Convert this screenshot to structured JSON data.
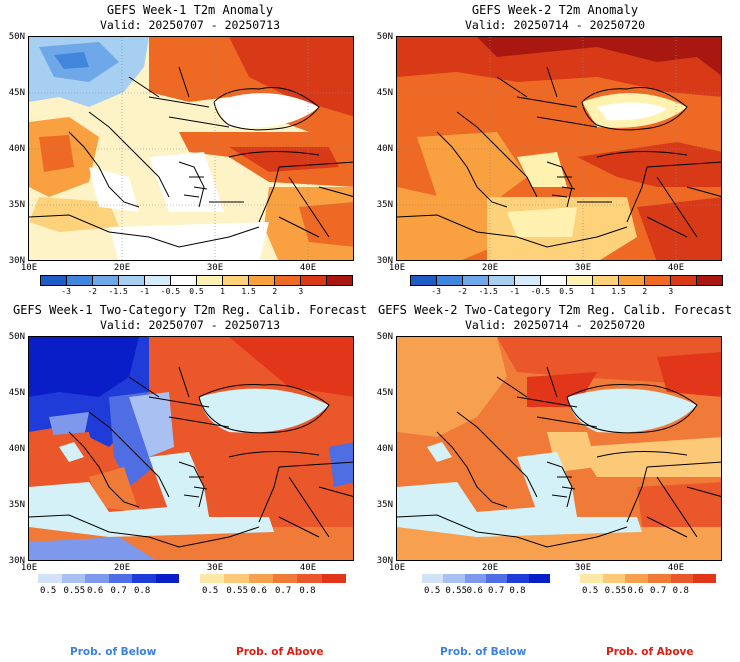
{
  "panels": [
    {
      "title": "GEFS Week-1 T2m Anomaly",
      "valid": "Valid: 20250707 - 20250713"
    },
    {
      "title": "GEFS Week-2 T2m Anomaly",
      "valid": "Valid: 20250714 - 20250720"
    },
    {
      "title": "GEFS Week-1 Two-Category T2m Reg. Calib. Forecast",
      "valid": "Valid: 20250707 - 20250713"
    },
    {
      "title": "GEFS Week-2 Two-Category T2m Reg. Calib. Forecast",
      "valid": "Valid: 20250714 - 20250720"
    }
  ],
  "axes": {
    "lat_labels": [
      "50N",
      "45N",
      "40N",
      "35N",
      "30N"
    ],
    "lon_labels": [
      "10E",
      "20E",
      "30E",
      "40E"
    ]
  },
  "anomaly_colorbar": {
    "labels": [
      "-3",
      "-2",
      "-1.5",
      "-1",
      "-0.5",
      "0.5",
      "1",
      "1.5",
      "2",
      "3"
    ],
    "colors": [
      "#1c5cc4",
      "#3f86dc",
      "#6fa8e8",
      "#a6cff2",
      "#d6ebfa",
      "#ffffff",
      "#fff2b0",
      "#fdd27a",
      "#f9a040",
      "#ee6a24",
      "#d83a18",
      "#a81810"
    ]
  },
  "prob_below": {
    "labels": [
      "0.5",
      "0.55",
      "0.6",
      "0.7",
      "0.8"
    ],
    "colors": [
      "#d4e2f8",
      "#a8c0f2",
      "#7e98ec",
      "#4f6ee4",
      "#1f3cd8",
      "#0a1ec8"
    ]
  },
  "prob_above": {
    "labels": [
      "0.5",
      "0.55",
      "0.6",
      "0.7",
      "0.8"
    ],
    "colors": [
      "#fde8a8",
      "#fbc978",
      "#f7a050",
      "#f07a38",
      "#e9572a",
      "#e2361a"
    ]
  },
  "legend": {
    "below_label": "Prob. of Below",
    "above_label": "Prob. of Above",
    "below_color": "#3a80e0",
    "above_color": "#e01b10"
  }
}
